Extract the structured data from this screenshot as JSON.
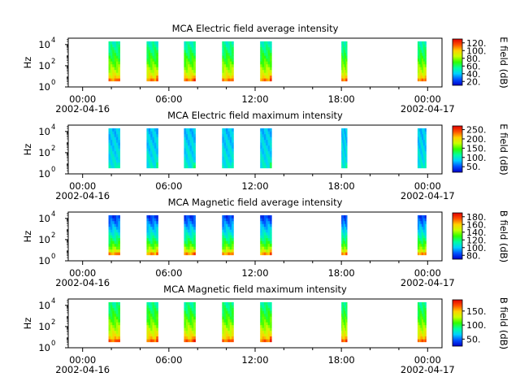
{
  "chart_data": [
    {
      "type": "heatmap",
      "title": "MCA  Electric field average intensity",
      "ylabel": "Hz",
      "y_scale": "log",
      "y_ticks": [
        "10",
        "10",
        "10"
      ],
      "y_tick_exponents": [
        "0",
        "2",
        "4"
      ],
      "x_tick_labels": [
        "00:00",
        "06:00",
        "12:00",
        "18:00",
        "00:00"
      ],
      "x_date_labels": [
        "2002-04-16",
        "2002-04-17"
      ],
      "xlim_hours": [
        -1,
        25
      ],
      "ylim_log10": [
        0,
        4.6
      ],
      "data_windows_hours": [
        [
          1.8,
          2.6
        ],
        [
          4.45,
          5.25
        ],
        [
          7.05,
          7.85
        ],
        [
          9.7,
          10.5
        ],
        [
          12.35,
          13.15
        ],
        [
          18.0,
          18.4
        ],
        [
          23.3,
          23.9
        ]
      ],
      "colorbar": {
        "label": "E field (dB)",
        "ticks": [
          "20.",
          "40.",
          "60.",
          "80.",
          "100.",
          "120."
        ],
        "tick_values": [
          20,
          40,
          60,
          80,
          100,
          120
        ],
        "range": [
          10,
          130
        ]
      },
      "colormap": [
        "#0000c8",
        "#0050ff",
        "#00d0ff",
        "#00ffa0",
        "#30ff00",
        "#c8ff00",
        "#ffd000",
        "#ff5000",
        "#e00000"
      ],
      "low_freq_level": 0.82,
      "high_freq_level": 0.35
    },
    {
      "type": "heatmap",
      "title": "MCA  Electric field maximum intensity",
      "ylabel": "Hz",
      "y_scale": "log",
      "y_ticks": [
        "10",
        "10",
        "10"
      ],
      "y_tick_exponents": [
        "0",
        "2",
        "4"
      ],
      "x_tick_labels": [
        "00:00",
        "06:00",
        "12:00",
        "18:00",
        "00:00"
      ],
      "x_date_labels": [
        "2002-04-16",
        "2002-04-17"
      ],
      "xlim_hours": [
        -1,
        25
      ],
      "ylim_log10": [
        0,
        4.6
      ],
      "data_windows_hours": [
        [
          1.8,
          2.6
        ],
        [
          4.45,
          5.25
        ],
        [
          7.05,
          7.85
        ],
        [
          9.7,
          10.5
        ],
        [
          12.35,
          13.15
        ],
        [
          18.0,
          18.4
        ],
        [
          23.3,
          23.9
        ]
      ],
      "colorbar": {
        "label": "E field (dB)",
        "ticks": [
          "50.",
          "100.",
          "150.",
          "200.",
          "250."
        ],
        "tick_values": [
          50,
          100,
          150,
          200,
          250
        ],
        "range": [
          20,
          270
        ]
      },
      "colormap": [
        "#0000c8",
        "#0050ff",
        "#00d0ff",
        "#00ffa0",
        "#30ff00",
        "#c8ff00",
        "#ffd000",
        "#ff5000",
        "#e00000"
      ],
      "low_freq_level": 0.32,
      "high_freq_level": 0.24
    },
    {
      "type": "heatmap",
      "title": "MCA  Magnetic field average intensity",
      "ylabel": "Hz",
      "y_scale": "log",
      "y_ticks": [
        "10",
        "10",
        "10"
      ],
      "y_tick_exponents": [
        "0",
        "2",
        "4"
      ],
      "x_tick_labels": [
        "00:00",
        "06:00",
        "12:00",
        "18:00",
        "00:00"
      ],
      "x_date_labels": [
        "2002-04-16",
        "2002-04-17"
      ],
      "xlim_hours": [
        -1,
        25
      ],
      "ylim_log10": [
        0,
        4.6
      ],
      "data_windows_hours": [
        [
          1.8,
          2.6
        ],
        [
          4.45,
          5.25
        ],
        [
          7.05,
          7.85
        ],
        [
          9.7,
          10.5
        ],
        [
          12.35,
          13.15
        ],
        [
          18.0,
          18.4
        ],
        [
          23.3,
          23.9
        ]
      ],
      "colorbar": {
        "label": "B field (dB)",
        "ticks": [
          "80.",
          "100.",
          "120.",
          "140.",
          "160.",
          "180."
        ],
        "tick_values": [
          80,
          100,
          120,
          140,
          160,
          180
        ],
        "range": [
          70,
          190
        ]
      },
      "colormap": [
        "#0000c8",
        "#0050ff",
        "#00d0ff",
        "#00ffa0",
        "#30ff00",
        "#c8ff00",
        "#ffd000",
        "#ff5000",
        "#e00000"
      ],
      "low_freq_level": 0.8,
      "high_freq_level": 0.1
    },
    {
      "type": "heatmap",
      "title": "MCA  Magnetic field maximum intensity",
      "ylabel": "Hz",
      "y_scale": "log",
      "y_ticks": [
        "10",
        "10",
        "10"
      ],
      "y_tick_exponents": [
        "0",
        "2",
        "4"
      ],
      "x_tick_labels": [
        "00:00",
        "06:00",
        "12:00",
        "18:00",
        "00:00"
      ],
      "x_date_labels": [
        "2002-04-16",
        "2002-04-17"
      ],
      "xlim_hours": [
        -1,
        25
      ],
      "ylim_log10": [
        0,
        4.6
      ],
      "data_windows_hours": [
        [
          1.8,
          2.6
        ],
        [
          4.45,
          5.25
        ],
        [
          7.05,
          7.85
        ],
        [
          9.7,
          10.5
        ],
        [
          12.35,
          13.15
        ],
        [
          18.0,
          18.4
        ],
        [
          23.3,
          23.9
        ]
      ],
      "colorbar": {
        "label": "B field (dB)",
        "ticks": [
          "50.",
          "100.",
          "150."
        ],
        "tick_values": [
          50,
          100,
          150
        ],
        "range": [
          25,
          190
        ]
      },
      "colormap": [
        "#0000c8",
        "#0050ff",
        "#00d0ff",
        "#00ffa0",
        "#30ff00",
        "#c8ff00",
        "#ffd000",
        "#ff5000",
        "#e00000"
      ],
      "low_freq_level": 0.85,
      "high_freq_level": 0.38
    }
  ]
}
